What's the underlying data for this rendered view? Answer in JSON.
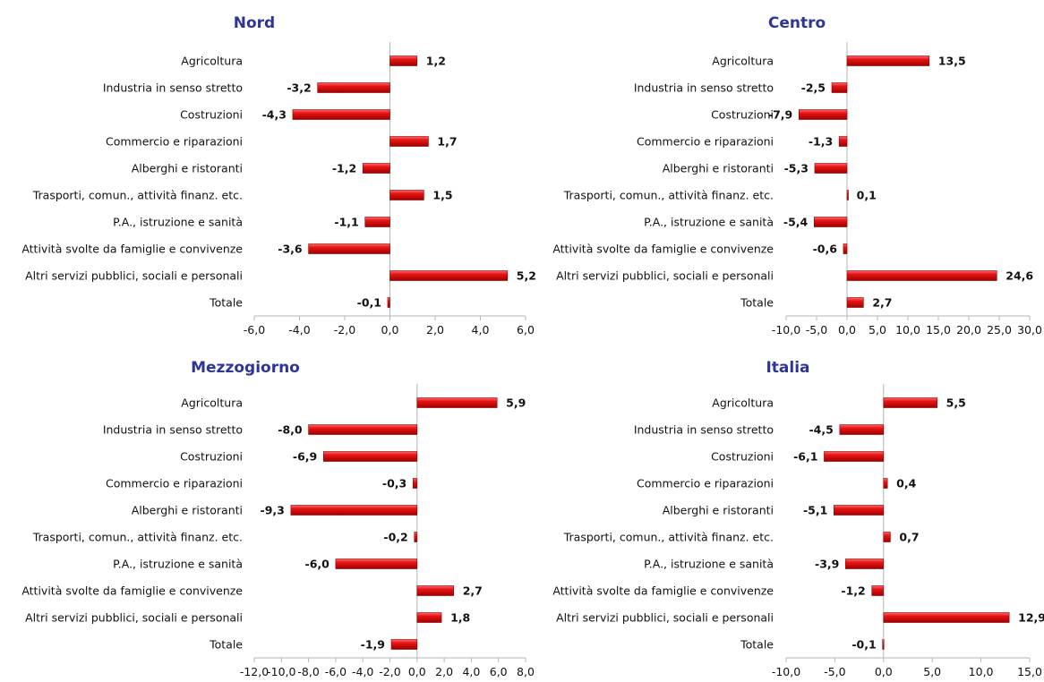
{
  "chart_data": [
    {
      "type": "bar",
      "orientation": "horizontal",
      "title": "Nord",
      "categories": [
        "Agricoltura",
        "Industria in senso stretto",
        "Costruzioni",
        "Commercio e riparazioni",
        "Alberghi e ristoranti",
        "Trasporti, comun., attività finanz. etc.",
        "P.A., istruzione e sanità",
        "Attività svolte da famiglie e convivenze",
        "Altri servizi pubblici, sociali e personali",
        "Totale"
      ],
      "values": [
        1.2,
        -3.2,
        -4.3,
        1.7,
        -1.2,
        1.5,
        -1.1,
        -3.6,
        5.2,
        -0.1
      ],
      "value_labels": [
        "1,2",
        "-3,2",
        "-4,3",
        "1,7",
        "-1,2",
        "1,5",
        "-1,1",
        "-3,6",
        "5,2",
        "-0,1"
      ],
      "xlim": [
        -6,
        6
      ],
      "ticks": [
        -6,
        -4,
        -2,
        0,
        2,
        4,
        6
      ],
      "tick_labels": [
        "-6,0",
        "-4,0",
        "-2,0",
        "0,0",
        "2,0",
        "4,0",
        "6,0"
      ],
      "bar_color": "#e81414"
    },
    {
      "type": "bar",
      "orientation": "horizontal",
      "title": "Centro",
      "categories": [
        "Agricoltura",
        "Industria in senso stretto",
        "Costruzioni",
        "Commercio e riparazioni",
        "Alberghi e ristoranti",
        "Trasporti, comun., attività finanz. etc.",
        "P.A., istruzione e sanità",
        "Attività svolte da famiglie e convivenze",
        "Altri servizi pubblici, sociali e personali",
        "Totale"
      ],
      "values": [
        13.5,
        -2.5,
        -7.9,
        -1.3,
        -5.3,
        0.1,
        -5.4,
        -0.6,
        24.6,
        2.7
      ],
      "value_labels": [
        "13,5",
        "-2,5",
        "-7,9",
        "-1,3",
        "-5,3",
        "0,1",
        "-5,4",
        "-0,6",
        "24,6",
        "2,7"
      ],
      "xlim": [
        -10,
        30
      ],
      "ticks": [
        -10,
        -5,
        0,
        5,
        10,
        15,
        20,
        25,
        30
      ],
      "tick_labels": [
        "-10,0",
        "-5,0",
        "0,0",
        "5,0",
        "10,0",
        "15,0",
        "20,0",
        "25,0",
        "30,0"
      ],
      "bar_color": "#e81414"
    },
    {
      "type": "bar",
      "orientation": "horizontal",
      "title": "Mezzogiorno",
      "categories": [
        "Agricoltura",
        "Industria in senso stretto",
        "Costruzioni",
        "Commercio e riparazioni",
        "Alberghi e ristoranti",
        "Trasporti, comun., attività finanz. etc.",
        "P.A., istruzione e sanità",
        "Attività svolte da famiglie e convivenze",
        "Altri servizi pubblici, sociali e personali",
        "Totale"
      ],
      "values": [
        5.9,
        -8.0,
        -6.9,
        -0.3,
        -9.3,
        -0.2,
        -6.0,
        2.7,
        1.8,
        -1.9
      ],
      "value_labels": [
        "5,9",
        "-8,0",
        "-6,9",
        "-0,3",
        "-9,3",
        "-0,2",
        "-6,0",
        "2,7",
        "1,8",
        "-1,9"
      ],
      "xlim": [
        -12,
        8
      ],
      "ticks": [
        -12,
        -10,
        -8,
        -6,
        -4,
        -2,
        0,
        2,
        4,
        6,
        8
      ],
      "tick_labels": [
        "-12,0",
        "-10,0",
        "-8,0",
        "-6,0",
        "-4,0",
        "-2,0",
        "0,0",
        "2,0",
        "4,0",
        "6,0",
        "8,0"
      ],
      "bar_color": "#e81414"
    },
    {
      "type": "bar",
      "orientation": "horizontal",
      "title": "Italia",
      "categories": [
        "Agricoltura",
        "Industria in senso stretto",
        "Costruzioni",
        "Commercio e riparazioni",
        "Alberghi e ristoranti",
        "Trasporti, comun., attività finanz. etc.",
        "P.A., istruzione e sanità",
        "Attività svolte da famiglie e convivenze",
        "Altri servizi pubblici, sociali e personali",
        "Totale"
      ],
      "values": [
        5.5,
        -4.5,
        -6.1,
        0.4,
        -5.1,
        0.7,
        -3.9,
        -1.2,
        12.9,
        -0.1
      ],
      "value_labels": [
        "5,5",
        "-4,5",
        "-6,1",
        "0,4",
        "-5,1",
        "0,7",
        "-3,9",
        "-1,2",
        "12,9",
        "-0,1"
      ],
      "xlim": [
        -10,
        15
      ],
      "ticks": [
        -10,
        -5,
        0,
        5,
        10,
        15
      ],
      "tick_labels": [
        "-10,0",
        "-5,0",
        "0,0",
        "5,0",
        "10,0",
        "15,0"
      ],
      "bar_color": "#e81414"
    }
  ]
}
